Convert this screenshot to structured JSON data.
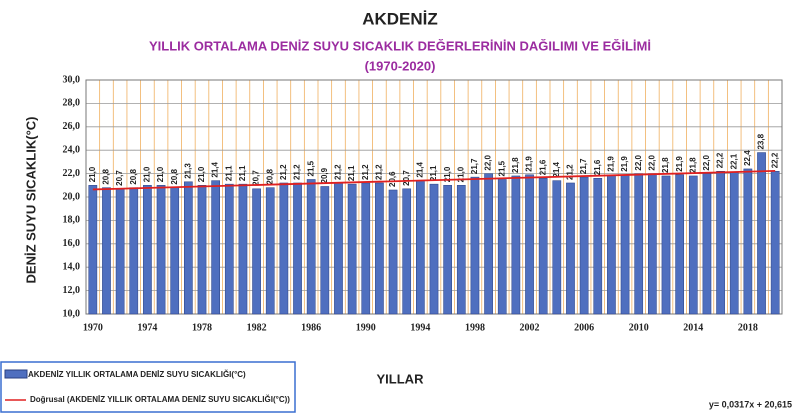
{
  "chart_data": {
    "type": "bar",
    "title": "AKDENİZ",
    "subtitle": "YILLIK ORTALAMA DENİZ SUYU SICAKLIK DEĞERLERİNİN  DAĞILIMI VE EĞİLİMİ",
    "subtitle2": "(1970-2020)",
    "y_label": "DENİZ SUYU  SICAKLIK(°C)",
    "x_label": "YILLAR",
    "categories": [
      "1970",
      null,
      null,
      null,
      "1974",
      null,
      null,
      null,
      "1978",
      null,
      null,
      null,
      "1982",
      null,
      null,
      null,
      "1986",
      null,
      null,
      null,
      "1990",
      null,
      null,
      null,
      "1994",
      null,
      null,
      null,
      "1998",
      null,
      null,
      null,
      "2002",
      null,
      null,
      null,
      "2006",
      null,
      null,
      null,
      "2010",
      null,
      null,
      null,
      "2014",
      null,
      null,
      null,
      "2018",
      null,
      null
    ],
    "series": [
      {
        "name": "AKDENİZ  YILLIK ORTALAMA DENİZ SUYU SICAKLIĞI(°C)",
        "color": "#4f6fbf",
        "values": [
          21.0,
          20.8,
          20.7,
          20.8,
          21.0,
          21.0,
          20.8,
          21.3,
          21.0,
          21.4,
          21.1,
          21.1,
          20.7,
          20.8,
          21.2,
          21.2,
          21.5,
          20.9,
          21.2,
          21.1,
          21.2,
          21.2,
          20.6,
          20.7,
          21.4,
          21.1,
          21.0,
          21.0,
          21.7,
          22.0,
          21.5,
          21.8,
          21.9,
          21.6,
          21.4,
          21.2,
          21.7,
          21.6,
          21.9,
          21.9,
          22.0,
          22.0,
          21.8,
          21.9,
          21.8,
          22.0,
          22.2,
          22.1,
          22.4,
          23.8,
          22.2
        ],
        "value_labels": [
          "21,0",
          "20,8",
          "20,7",
          "20,8",
          "21,0",
          "21,0",
          "20,8",
          "21,3",
          "21,0",
          "21,4",
          "21,1",
          "21,1",
          "20,7",
          "20,8",
          "21,2",
          "21,2",
          "21,5",
          "20,9",
          "21,2",
          "21,1",
          "21,2",
          "21,2",
          "20,6",
          "20,7",
          "21,4",
          "21,1",
          "21,0",
          "21,0",
          "21,7",
          "22,0",
          "21,5",
          "21,8",
          "21,9",
          "21,6",
          "21,4",
          "21,2",
          "21,7",
          "21,6",
          "21,9",
          "21,9",
          "22,0",
          "22,0",
          "21,8",
          "21,9",
          "21,8",
          "22,0",
          "22,2",
          "22,1",
          "22,4",
          "23,8",
          "22,2"
        ]
      }
    ],
    "trendline": {
      "name": "Doğrusal (AKDENİZ  YILLIK ORTALAMA DENİZ SUYU SICAKLIĞI(°C))",
      "color": "#e02020",
      "slope": 0.0317,
      "intercept": 20.615,
      "equation": "y= 0,0317x + 20,615"
    },
    "ylim": [
      10,
      30
    ],
    "yticks": [
      {
        "value": 10,
        "label": "10,0"
      },
      {
        "value": 12,
        "label": "12,0"
      },
      {
        "value": 14,
        "label": "14,0"
      },
      {
        "value": 16,
        "label": "16,0"
      },
      {
        "value": 18,
        "label": "18,0"
      },
      {
        "value": 20,
        "label": "20,0"
      },
      {
        "value": 22,
        "label": "22,0"
      },
      {
        "value": 24,
        "label": "24,0"
      },
      {
        "value": 26,
        "label": "26,0"
      },
      {
        "value": 28,
        "label": "28,0"
      },
      {
        "value": 30,
        "label": "30,0"
      }
    ],
    "grid": true
  }
}
